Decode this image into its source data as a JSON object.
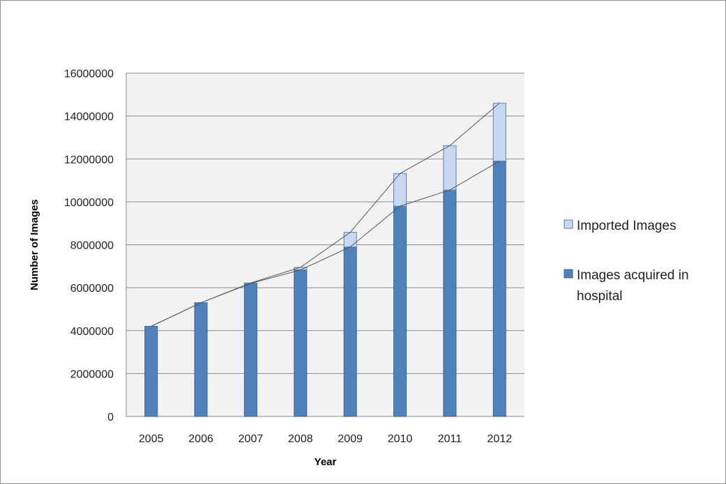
{
  "chart_data": {
    "type": "bar",
    "stacked": true,
    "categories": [
      "2005",
      "2006",
      "2007",
      "2008",
      "2009",
      "2010",
      "2011",
      "2012"
    ],
    "series": [
      {
        "name": "Images acquired in hospital",
        "legend_lines": [
          "Images acquired in",
          "hospital"
        ],
        "color": "#4f81bd",
        "values": [
          4200000,
          5300000,
          6200000,
          6830000,
          7900000,
          9800000,
          10550000,
          11900000
        ]
      },
      {
        "name": "Imported Images",
        "legend_lines": [
          "Imported Images"
        ],
        "color": "#c6d9f1",
        "values": [
          0,
          0,
          20000,
          120000,
          680000,
          1520000,
          2070000,
          2700000
        ]
      }
    ],
    "ylim": [
      0,
      16000000
    ],
    "yticks": [
      "0",
      "2000000",
      "4000000",
      "6000000",
      "8000000",
      "10000000",
      "12000000",
      "14000000",
      "16000000"
    ],
    "xlabel": "Year",
    "ylabel": "Number of Images",
    "grid": true,
    "legend_position": "right",
    "plot_background": "#f2f2f2",
    "connector_lines": true
  }
}
